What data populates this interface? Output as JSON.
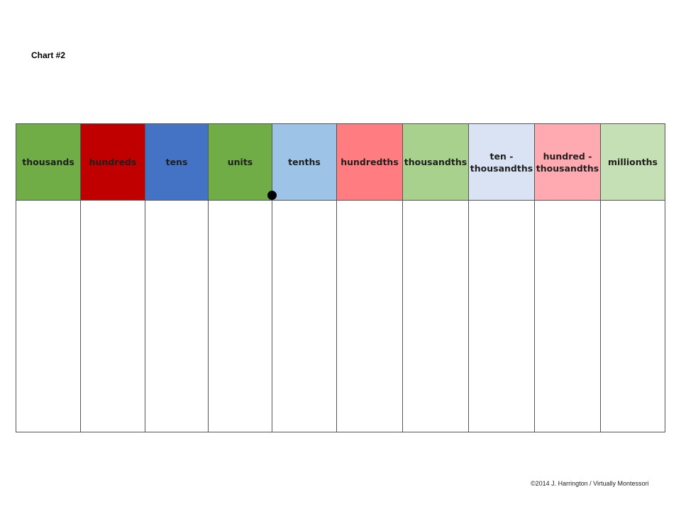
{
  "chart_label": "Chart #2",
  "columns": [
    {
      "line1": "thousands",
      "line2": "",
      "color": "#70ad47"
    },
    {
      "line1": "hundreds",
      "line2": "",
      "color": "#c00000"
    },
    {
      "line1": "tens",
      "line2": "",
      "color": "#4472c4"
    },
    {
      "line1": "units",
      "line2": "",
      "color": "#70ad47"
    },
    {
      "line1": "tenths",
      "line2": "",
      "color": "#9dc3e6"
    },
    {
      "line1": "hundredths",
      "line2": "",
      "color": "#ff7c80"
    },
    {
      "line1": "thousandths",
      "line2": "",
      "color": "#a9d18e"
    },
    {
      "line1": "ten -",
      "line2": "thousandths",
      "color": "#dae3f3"
    },
    {
      "line1": "hundred -",
      "line2": "thousandths",
      "color": "#ffaab0"
    },
    {
      "line1": "millionths",
      "line2": "",
      "color": "#c5e0b4"
    }
  ],
  "copyright": "©2014 J. Harrington / Virtually Montessori"
}
